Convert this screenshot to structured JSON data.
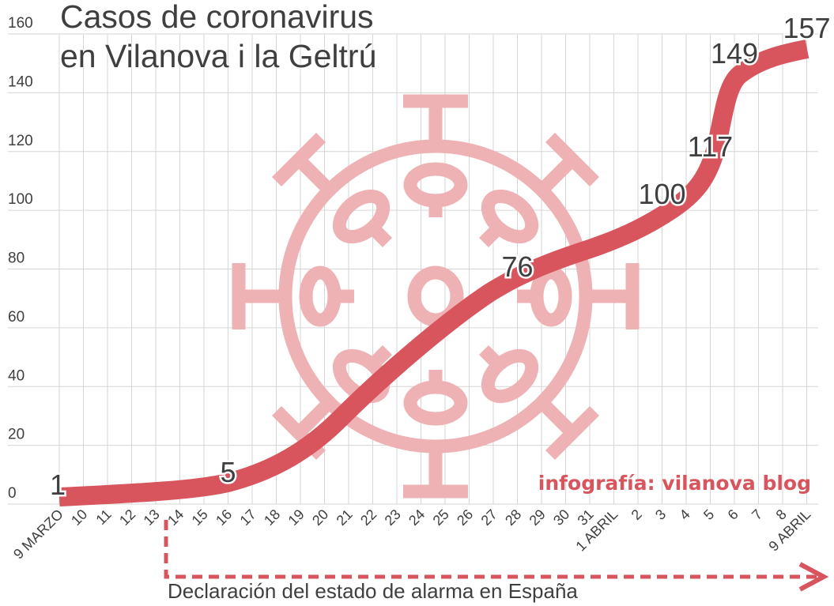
{
  "title_line1": "Casos de coronavirus",
  "title_line2": "en Vilanova i la Geltrú",
  "credit": "infografía: vilanova blog",
  "annotation": "Declaración del estado de alarma en España",
  "colors": {
    "line": "#d8555e",
    "virus_watermark": "#efb2b4",
    "grid": "#d6d6d6",
    "text": "#3f3f3f",
    "dashed_arrow": "#d8555e"
  },
  "chart_data": {
    "type": "line",
    "title": "Casos de coronavirus en Vilanova i la Geltrú",
    "xlabel": "",
    "ylabel": "",
    "ylim": [
      0,
      160
    ],
    "yticks": [
      0,
      20,
      40,
      60,
      80,
      100,
      120,
      140,
      160
    ],
    "grid": true,
    "categories": [
      "9 MARZO",
      "10",
      "11",
      "12",
      "13",
      "14",
      "15",
      "16",
      "17",
      "18",
      "19",
      "20",
      "21",
      "22",
      "23",
      "24",
      "25",
      "26",
      "27",
      "28",
      "29",
      "30",
      "31",
      "1 ABRIL",
      "2",
      "3",
      "4",
      "5",
      "6",
      "7",
      "8",
      "9 ABRIL"
    ],
    "labeled_points": [
      {
        "date": "9 MARZO",
        "index": 0,
        "value": 1
      },
      {
        "date": "16",
        "index": 7,
        "value": 5
      },
      {
        "date": "28",
        "index": 19,
        "value": 76
      },
      {
        "date": "3",
        "index": 25,
        "value": 100
      },
      {
        "date": "5",
        "index": 27,
        "value": 117
      },
      {
        "date": "6",
        "index": 28,
        "value": 149
      },
      {
        "date": "9 ABRIL",
        "index": 31,
        "value": 157
      }
    ],
    "series": [
      {
        "name": "Casos",
        "values": [
          1,
          2,
          2,
          3,
          3,
          4,
          4,
          5,
          9,
          14,
          20,
          27,
          34,
          41,
          48,
          55,
          61,
          66,
          71,
          76,
          80,
          83,
          86,
          89,
          93,
          100,
          108,
          117,
          149,
          152,
          155,
          157
        ]
      }
    ],
    "annotations": [
      {
        "text": "Declaración del estado de alarma en España",
        "from_index": 4.5,
        "to_index": 31,
        "style": "dashed-arrow"
      },
      {
        "text": "infografía: vilanova blog",
        "position": "bottom-right"
      }
    ]
  }
}
